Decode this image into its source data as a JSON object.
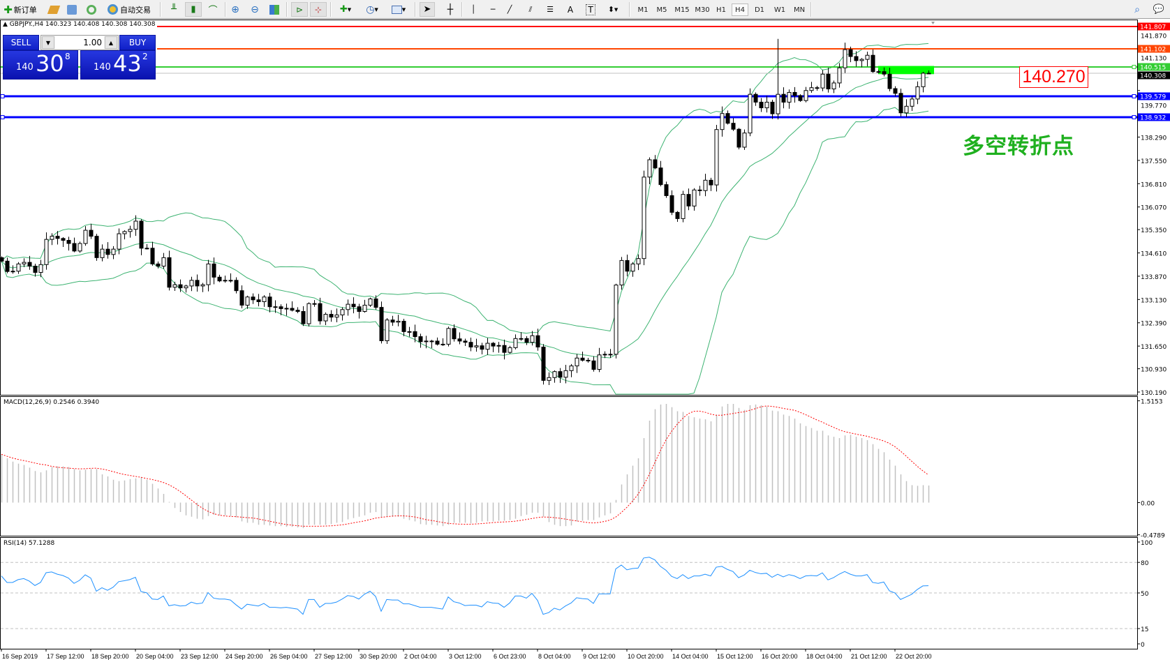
{
  "toolbar": {
    "new_order": "新订单",
    "auto_trading": "自动交易",
    "timeframes": [
      "M1",
      "M5",
      "M15",
      "M30",
      "H1",
      "H4",
      "D1",
      "W1",
      "MN"
    ],
    "active_timeframe": "H4"
  },
  "chart_header": "GBPJPY.,H4  140.323 140.408 140.308 140.308",
  "trade_panel": {
    "sell_label": "SELL",
    "buy_label": "BUY",
    "lot": "1.00",
    "sell_price": {
      "prefix": "140",
      "big": "30",
      "sup": "8"
    },
    "buy_price": {
      "prefix": "140",
      "big": "43",
      "sup": "2"
    }
  },
  "annotations": {
    "price_box": "140.270",
    "text": "多空转折点",
    "zone_color": "#00ff00"
  },
  "colors": {
    "bull_body": "#ffffff",
    "bear_body": "#000000",
    "bands": "#3cb371",
    "macd_hist": "#c0c0c0",
    "macd_signal": "#ff0000",
    "rsi": "#1e90ff"
  },
  "chart_data": [
    {
      "type": "candlestick",
      "symbol": "GBPJPY.",
      "timeframe": "H4",
      "ylim": [
        130.19,
        141.87
      ],
      "y_ticks": [
        "141.870",
        "141.130",
        "139.770",
        "138.290",
        "137.550",
        "136.810",
        "136.070",
        "135.350",
        "134.610",
        "133.870",
        "133.130",
        "132.390",
        "131.650",
        "130.930",
        "130.190"
      ],
      "first_open": 134.46,
      "last_bar": {
        "open": 140.323,
        "high": 140.408,
        "low": 140.308,
        "close": 140.308
      },
      "close": [
        134.35,
        134.02,
        134.03,
        134.26,
        134.31,
        134.19,
        133.99,
        134.24,
        135.04,
        135.14,
        135.07,
        135.01,
        134.91,
        134.67,
        134.91,
        135.33,
        135.14,
        134.46,
        134.73,
        134.56,
        134.73,
        135.22,
        135.29,
        135.36,
        135.62,
        134.76,
        134.76,
        134.26,
        134.19,
        134.46,
        133.52,
        133.6,
        133.5,
        133.56,
        133.74,
        133.56,
        133.6,
        134.26,
        133.84,
        133.72,
        133.74,
        133.74,
        133.41,
        132.95,
        133.21,
        133.12,
        133.06,
        133.21,
        132.9,
        132.9,
        132.84,
        132.85,
        132.79,
        132.75,
        132.36,
        133.0,
        133.0,
        132.45,
        132.66,
        132.57,
        132.64,
        132.81,
        132.98,
        132.9,
        132.75,
        132.95,
        133.15,
        132.88,
        131.82,
        132.48,
        132.41,
        132.44,
        132.11,
        132.11,
        131.95,
        131.79,
        131.81,
        131.81,
        131.71,
        131.71,
        132.21,
        131.88,
        131.81,
        131.77,
        131.62,
        131.66,
        131.55,
        131.74,
        131.65,
        131.67,
        131.45,
        131.6,
        131.89,
        131.89,
        131.77,
        131.98,
        131.62,
        130.56,
        130.65,
        130.84,
        130.66,
        130.87,
        131.02,
        131.27,
        131.2,
        131.18,
        130.91,
        131.37,
        131.39,
        131.39,
        133.59,
        134.37,
        134.03,
        134.26,
        134.43,
        137.02,
        137.57,
        137.31,
        136.78,
        136.43,
        135.9,
        135.7,
        136.47,
        136.1,
        136.61,
        136.59,
        136.92,
        136.77,
        138.53,
        139.04,
        138.73,
        138.54,
        137.97,
        138.42,
        139.65,
        139.4,
        139.22,
        139.4,
        139.03,
        139.65,
        139.4,
        139.71,
        139.61,
        139.45,
        139.77,
        139.86,
        139.85,
        140.29,
        139.82,
        140.01,
        140.49,
        141.07,
        140.85,
        140.72,
        140.76,
        140.89,
        140.37,
        140.37,
        140.29,
        139.83,
        139.68,
        139.06,
        139.27,
        139.5,
        139.89,
        140.32,
        140.308
      ],
      "notable_high": {
        "bar": 140,
        "price": 141.41
      },
      "indicator": "Bollinger Bands (20)",
      "levels": [
        {
          "price": "141.807",
          "color": "#ff0000",
          "tag_bg": "#ff0000"
        },
        {
          "price": "141.102",
          "color": "#ff4500",
          "tag_bg": "#ff4500"
        },
        {
          "price": "140.515",
          "color": "#32cd32",
          "tag_bg": "#32cd32"
        },
        {
          "price": "140.308",
          "color": "#c0c0c0",
          "tag_bg": "#000000"
        },
        {
          "price": "139.579",
          "color": "#0000ff",
          "tag_bg": "#0000ff"
        },
        {
          "price": "138.932",
          "color": "#0000ff",
          "tag_bg": "#0000ff"
        }
      ],
      "zone": {
        "from_bar": 158,
        "to_bar": 168,
        "price_low": 140.29,
        "price_high": 140.55
      }
    },
    {
      "type": "bar+line",
      "label": "MACD(12,26,9) 0.2546 0.3940",
      "ylim": [
        -0.4789,
        1.5153
      ],
      "y_ticks": [
        "1.5153",
        "0.00",
        "-0.4789"
      ],
      "macd": [
        0.72,
        0.66,
        0.61,
        0.58,
        0.56,
        0.52,
        0.47,
        0.45,
        0.48,
        0.53,
        0.54,
        0.54,
        0.53,
        0.5,
        0.48,
        0.49,
        0.5,
        0.5,
        0.42,
        0.39,
        0.34,
        0.32,
        0.33,
        0.35,
        0.36,
        0.38,
        0.34,
        0.28,
        0.21,
        0.13,
        0.01,
        -0.08,
        -0.14,
        -0.19,
        -0.21,
        -0.24,
        -0.25,
        -0.2,
        -0.18,
        -0.19,
        -0.19,
        -0.2,
        -0.22,
        -0.28,
        -0.3,
        -0.3,
        -0.33,
        -0.33,
        -0.34,
        -0.35,
        -0.35,
        -0.36,
        -0.36,
        -0.37,
        -0.38,
        -0.33,
        -0.33,
        -0.33,
        -0.33,
        -0.32,
        -0.3,
        -0.29,
        -0.25,
        -0.23,
        -0.21,
        -0.19,
        -0.15,
        -0.14,
        -0.22,
        -0.21,
        -0.21,
        -0.21,
        -0.24,
        -0.26,
        -0.28,
        -0.32,
        -0.33,
        -0.33,
        -0.34,
        -0.35,
        -0.33,
        -0.3,
        -0.3,
        -0.3,
        -0.31,
        -0.3,
        -0.28,
        -0.28,
        -0.28,
        -0.27,
        -0.27,
        -0.26,
        -0.24,
        -0.2,
        -0.18,
        -0.15,
        -0.15,
        -0.21,
        -0.29,
        -0.33,
        -0.35,
        -0.35,
        -0.34,
        -0.28,
        -0.27,
        -0.26,
        -0.26,
        -0.22,
        -0.19,
        -0.16,
        0.04,
        0.27,
        0.42,
        0.55,
        0.66,
        0.96,
        1.22,
        1.39,
        1.46,
        1.47,
        1.42,
        1.36,
        1.35,
        1.29,
        1.27,
        1.25,
        1.24,
        1.21,
        1.31,
        1.43,
        1.47,
        1.47,
        1.41,
        1.38,
        1.45,
        1.46,
        1.45,
        1.43,
        1.37,
        1.36,
        1.31,
        1.29,
        1.25,
        1.18,
        1.14,
        1.11,
        1.07,
        1.07,
        1.0,
        0.98,
        0.96,
        1.0,
        1.01,
        0.98,
        0.96,
        0.93,
        0.87,
        0.8,
        0.75,
        0.64,
        0.55,
        0.42,
        0.32,
        0.26,
        0.25,
        0.26,
        0.2546
      ],
      "signal_period": 9
    },
    {
      "type": "line",
      "label": "RSI(14) 57.1288",
      "ylim": [
        0,
        100
      ],
      "y_ticks": [
        "100",
        "80",
        "50",
        "15",
        "0"
      ],
      "levels": [
        80,
        50,
        15
      ],
      "rsi": [
        66.7,
        60.3,
        60.3,
        63.1,
        64.1,
        61.6,
        57.3,
        60.3,
        69.9,
        70.6,
        68.4,
        67.1,
        64.6,
        59.4,
        62.4,
        67.8,
        64.6,
        51.7,
        55.1,
        52.6,
        55.6,
        61.1,
        62.0,
        63.1,
        65.4,
        51.3,
        50.2,
        44.0,
        43.6,
        47.0,
        37.4,
        38.4,
        37.2,
        37.6,
        41.0,
        39.3,
        40.1,
        50.4,
        44.9,
        44.0,
        44.0,
        43.1,
        38.4,
        34.2,
        38.9,
        38.0,
        37.2,
        39.7,
        35.9,
        35.9,
        35.4,
        35.9,
        35.0,
        34.2,
        29.0,
        43.6,
        43.6,
        35.9,
        39.7,
        39.7,
        41.0,
        44.0,
        47.4,
        46.6,
        44.0,
        48.7,
        51.7,
        46.6,
        32.0,
        43.6,
        43.1,
        43.1,
        39.3,
        39.3,
        37.6,
        35.9,
        35.9,
        35.9,
        35.0,
        34.2,
        46.1,
        41.4,
        40.1,
        37.6,
        38.0,
        38.0,
        36.3,
        41.4,
        40.1,
        39.7,
        35.9,
        40.1,
        47.0,
        47.0,
        44.9,
        49.6,
        42.7,
        29.0,
        30.7,
        35.0,
        33.3,
        37.2,
        40.1,
        45.3,
        44.4,
        44.0,
        39.7,
        49.1,
        49.1,
        49.1,
        73.6,
        77.4,
        72.7,
        74.0,
        74.4,
        84.3,
        85.1,
        82.5,
        76.1,
        72.3,
        66.3,
        64.1,
        68.0,
        64.1,
        66.7,
        66.7,
        68.4,
        66.7,
        75.3,
        76.1,
        73.1,
        71.0,
        65.0,
        67.6,
        72.3,
        70.1,
        68.8,
        69.3,
        65.4,
        68.4,
        65.8,
        68.0,
        66.7,
        64.1,
        66.7,
        67.1,
        66.7,
        69.7,
        62.8,
        65.0,
        68.4,
        71.0,
        68.4,
        66.7,
        66.7,
        68.0,
        60.3,
        59.4,
        60.7,
        52.1,
        50.0,
        43.6,
        46.1,
        48.7,
        53.4,
        56.9,
        57.1288
      ]
    }
  ],
  "time_axis": [
    "16 Sep 2019",
    "17 Sep 12:00",
    "18 Sep 20:00",
    "20 Sep 04:00",
    "23 Sep 12:00",
    "24 Sep 20:00",
    "26 Sep 04:00",
    "27 Sep 12:00",
    "30 Sep 20:00",
    "2 Oct 04:00",
    "3 Oct 12:00",
    "6 Oct 23:00",
    "8 Oct 04:00",
    "9 Oct 12:00",
    "10 Oct 20:00",
    "14 Oct 04:00",
    "15 Oct 12:00",
    "16 Oct 20:00",
    "18 Oct 04:00",
    "21 Oct 12:00",
    "22 Oct 20:00"
  ]
}
